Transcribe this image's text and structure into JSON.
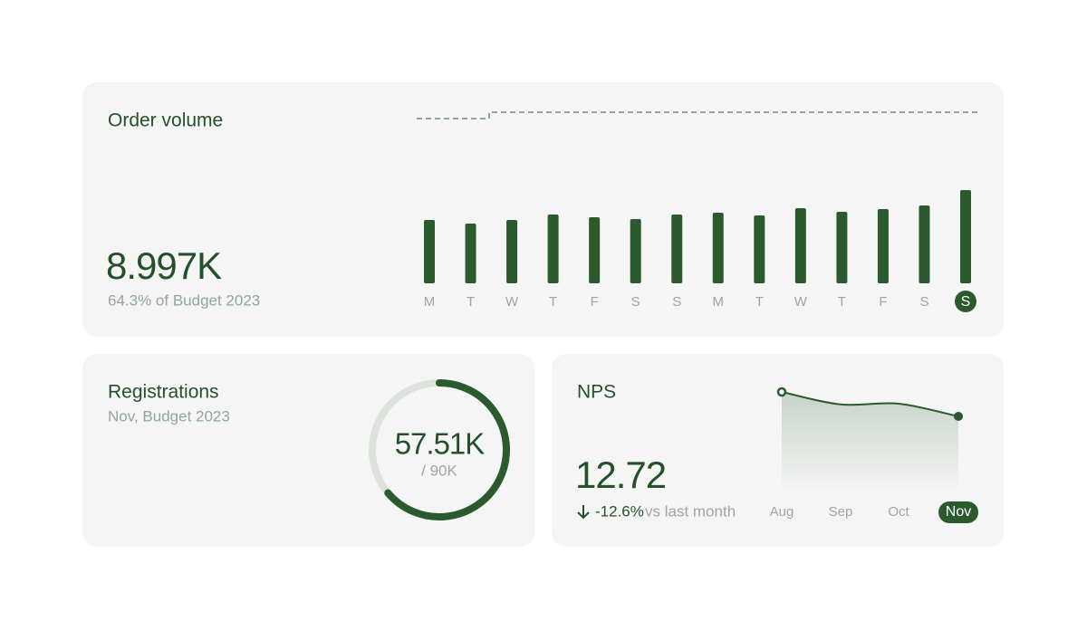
{
  "order_volume": {
    "title": "Order volume",
    "value": "8.997K",
    "subtitle": "64.3% of Budget 2023",
    "chart": {
      "type": "bar",
      "categories": [
        "M",
        "T",
        "W",
        "T",
        "F",
        "S",
        "S",
        "M",
        "T",
        "W",
        "T",
        "F",
        "S",
        "S"
      ],
      "values": [
        700,
        660,
        700,
        760,
        730,
        710,
        760,
        780,
        750,
        830,
        790,
        820,
        860,
        1030
      ],
      "color": "#2b5a2f"
    }
  },
  "registrations": {
    "title": "Registrations",
    "subtitle": "Nov, Budget 2023",
    "value": 57.51,
    "value_label": "57.51K",
    "total": 90,
    "total_label": "/ 90K"
  },
  "nps": {
    "title": "NPS",
    "value": "12.72",
    "change": "-12.6%",
    "change_text": "vs last month",
    "chart": {
      "type": "line",
      "categories": [
        "Aug",
        "Sep",
        "Oct",
        "Nov"
      ],
      "values": [
        16.25,
        14.45,
        14.55,
        12.72
      ],
      "color": "#2b5a2f"
    }
  }
}
